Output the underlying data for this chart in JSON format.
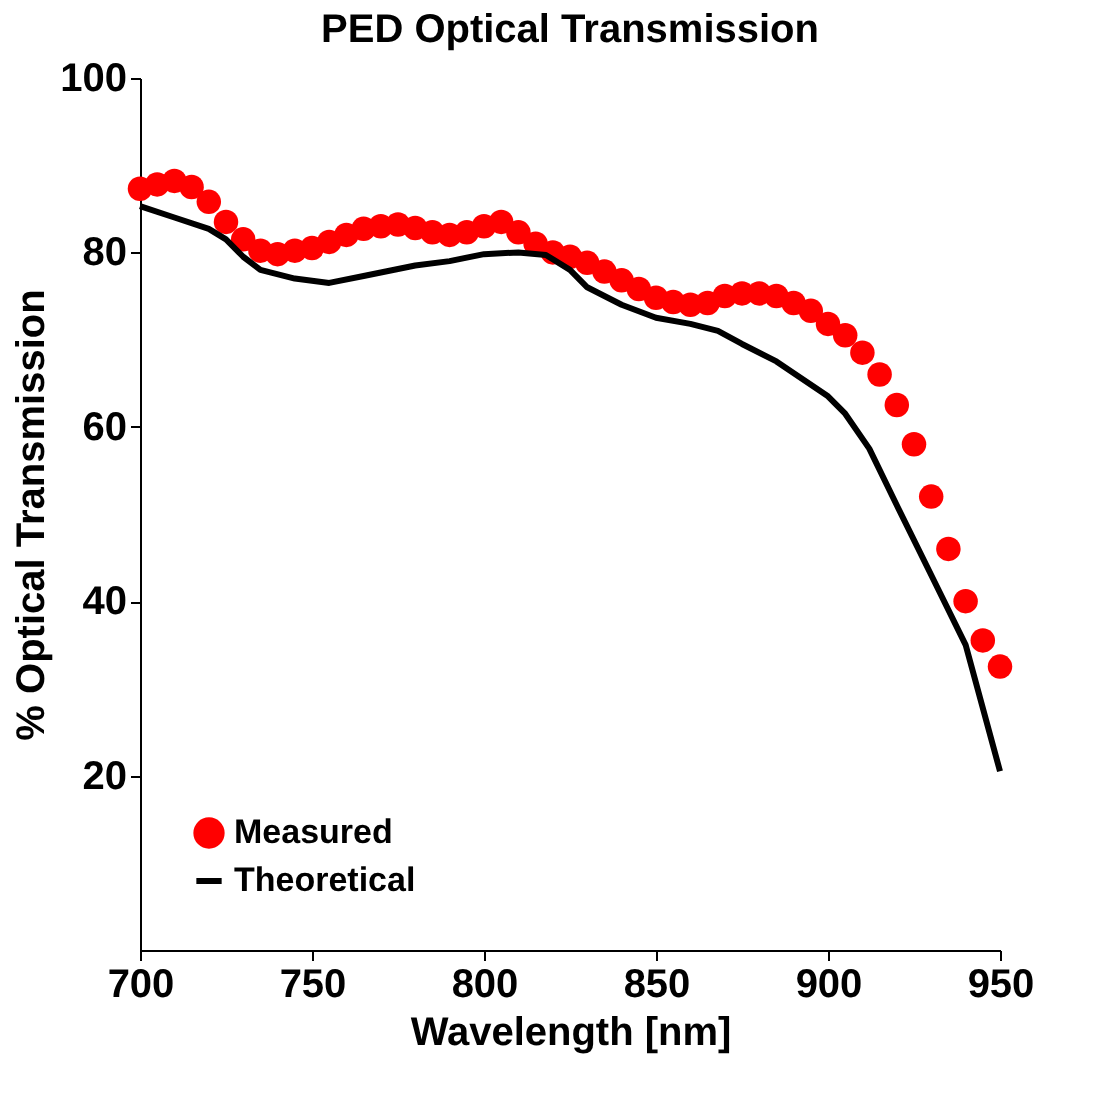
{
  "chart_data": {
    "type": "line",
    "title": "PED Optical Transmission",
    "xlabel": "Wavelength [nm]",
    "ylabel": "% Optical Transmission",
    "xlim": [
      700,
      950
    ],
    "xticks": [
      700,
      750,
      800,
      850,
      900,
      950
    ],
    "ylim": [
      0,
      100
    ],
    "yticks": [
      20,
      40,
      60,
      80,
      100
    ],
    "grid": false,
    "legend": "bottom left",
    "series": [
      {
        "name": "Measured",
        "type": "scatter",
        "marker": "circle",
        "color": "#ff0000",
        "x": [
          700,
          705,
          710,
          715,
          720,
          725,
          730,
          735,
          740,
          745,
          750,
          755,
          760,
          765,
          770,
          775,
          780,
          785,
          790,
          795,
          800,
          805,
          810,
          815,
          820,
          825,
          830,
          835,
          840,
          845,
          850,
          855,
          860,
          865,
          870,
          875,
          880,
          885,
          890,
          895,
          900,
          905,
          910,
          915,
          920,
          925,
          930,
          935,
          940,
          945,
          950
        ],
        "values": [
          87.3,
          87.8,
          88.2,
          87.5,
          85.8,
          83.5,
          81.5,
          80.2,
          79.8,
          80.2,
          80.5,
          81.2,
          82,
          82.7,
          83,
          83.2,
          82.8,
          82.3,
          82,
          82.3,
          83,
          83.5,
          82.3,
          81,
          80,
          79.5,
          78.8,
          77.8,
          76.8,
          75.8,
          74.8,
          74.3,
          74,
          74.2,
          75,
          75.3,
          75.3,
          75,
          74.2,
          73.3,
          71.8,
          70.5,
          68.5,
          66,
          62.5,
          58,
          52,
          46,
          40,
          35.5,
          32.5
        ]
      },
      {
        "name": "Theoretical",
        "line_style": "solid",
        "color": "#000000",
        "x": [
          700,
          710,
          720,
          725,
          730,
          735,
          745,
          755,
          765,
          780,
          790,
          800,
          810,
          818,
          825,
          830,
          840,
          850,
          860,
          868,
          875,
          885,
          900,
          905,
          912,
          920,
          930,
          940,
          950
        ],
        "values": [
          85.3,
          84,
          82.7,
          81.5,
          79.5,
          78,
          77,
          76.5,
          77.3,
          78.5,
          79,
          79.8,
          80,
          79.7,
          78,
          76,
          74,
          72.5,
          71.8,
          71,
          69.5,
          67.5,
          63.5,
          61.5,
          57.5,
          51,
          43,
          35,
          20.5
        ]
      }
    ]
  }
}
